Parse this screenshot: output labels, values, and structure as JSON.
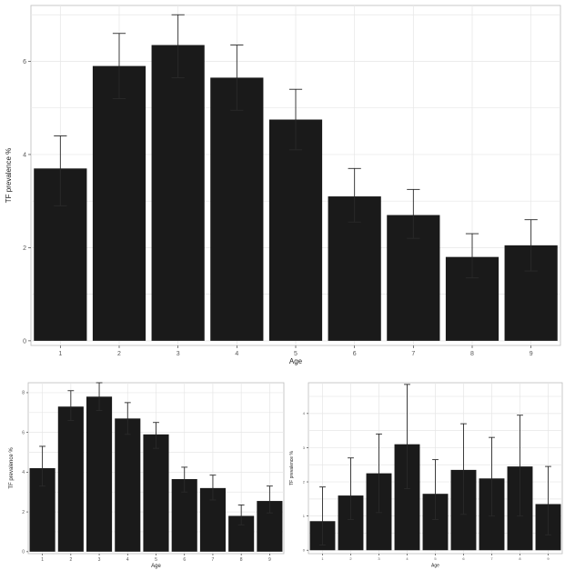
{
  "chart_data": [
    {
      "type": "bar",
      "xlabel": "Age",
      "ylabel": "TF prevalence %",
      "categories": [
        "1",
        "2",
        "3",
        "4",
        "5",
        "6",
        "7",
        "8",
        "9"
      ],
      "values": [
        3.7,
        5.9,
        6.35,
        5.65,
        4.75,
        3.1,
        2.7,
        1.8,
        2.05
      ],
      "error_low": [
        2.9,
        5.2,
        5.65,
        4.95,
        4.1,
        2.55,
        2.2,
        1.35,
        1.5
      ],
      "error_high": [
        4.4,
        6.6,
        7.0,
        6.35,
        5.4,
        3.7,
        3.25,
        2.3,
        2.6
      ],
      "ylim": [
        -0.1,
        7.2
      ],
      "yticks": [
        "0",
        "2",
        "4",
        "6"
      ],
      "grid": true,
      "bar_color": "#1a1a1a",
      "panel_background": "#ffffff",
      "grid_color": "#e6e6e6"
    },
    {
      "type": "bar",
      "xlabel": "Age",
      "ylabel": "TF prevalence %",
      "categories": [
        "1",
        "2",
        "3",
        "4",
        "5",
        "6",
        "7",
        "8",
        "9"
      ],
      "values": [
        4.2,
        7.3,
        7.8,
        6.7,
        5.9,
        3.65,
        3.2,
        1.8,
        2.55
      ],
      "error_low": [
        3.3,
        6.6,
        7.1,
        5.9,
        5.2,
        3.0,
        2.6,
        1.35,
        1.95
      ],
      "error_high": [
        5.3,
        8.1,
        8.5,
        7.5,
        6.5,
        4.25,
        3.85,
        2.35,
        3.3
      ],
      "ylim": [
        -0.1,
        8.5
      ],
      "yticks": [
        "0",
        "2",
        "4",
        "6",
        "8"
      ],
      "grid": true,
      "bar_color": "#1a1a1a",
      "panel_background": "#ffffff",
      "grid_color": "#e6e6e6"
    },
    {
      "type": "bar",
      "xlabel": "Age",
      "ylabel": "TF prevalence %",
      "categories": [
        "1",
        "2",
        "3",
        "4",
        "5",
        "6",
        "7",
        "8",
        "9"
      ],
      "values": [
        0.85,
        1.6,
        2.25,
        3.1,
        1.65,
        2.35,
        2.1,
        2.45,
        1.35
      ],
      "error_low": [
        0.15,
        0.9,
        1.1,
        1.8,
        0.9,
        1.05,
        1.0,
        1.0,
        0.45
      ],
      "error_high": [
        1.85,
        2.7,
        3.4,
        4.85,
        2.65,
        3.7,
        3.3,
        3.95,
        2.45
      ],
      "ylim": [
        -0.1,
        4.9
      ],
      "yticks": [
        "0",
        "1",
        "2",
        "3",
        "4"
      ],
      "grid": true,
      "bar_color": "#1a1a1a",
      "panel_background": "#ffffff",
      "grid_color": "#e6e6e6"
    }
  ]
}
